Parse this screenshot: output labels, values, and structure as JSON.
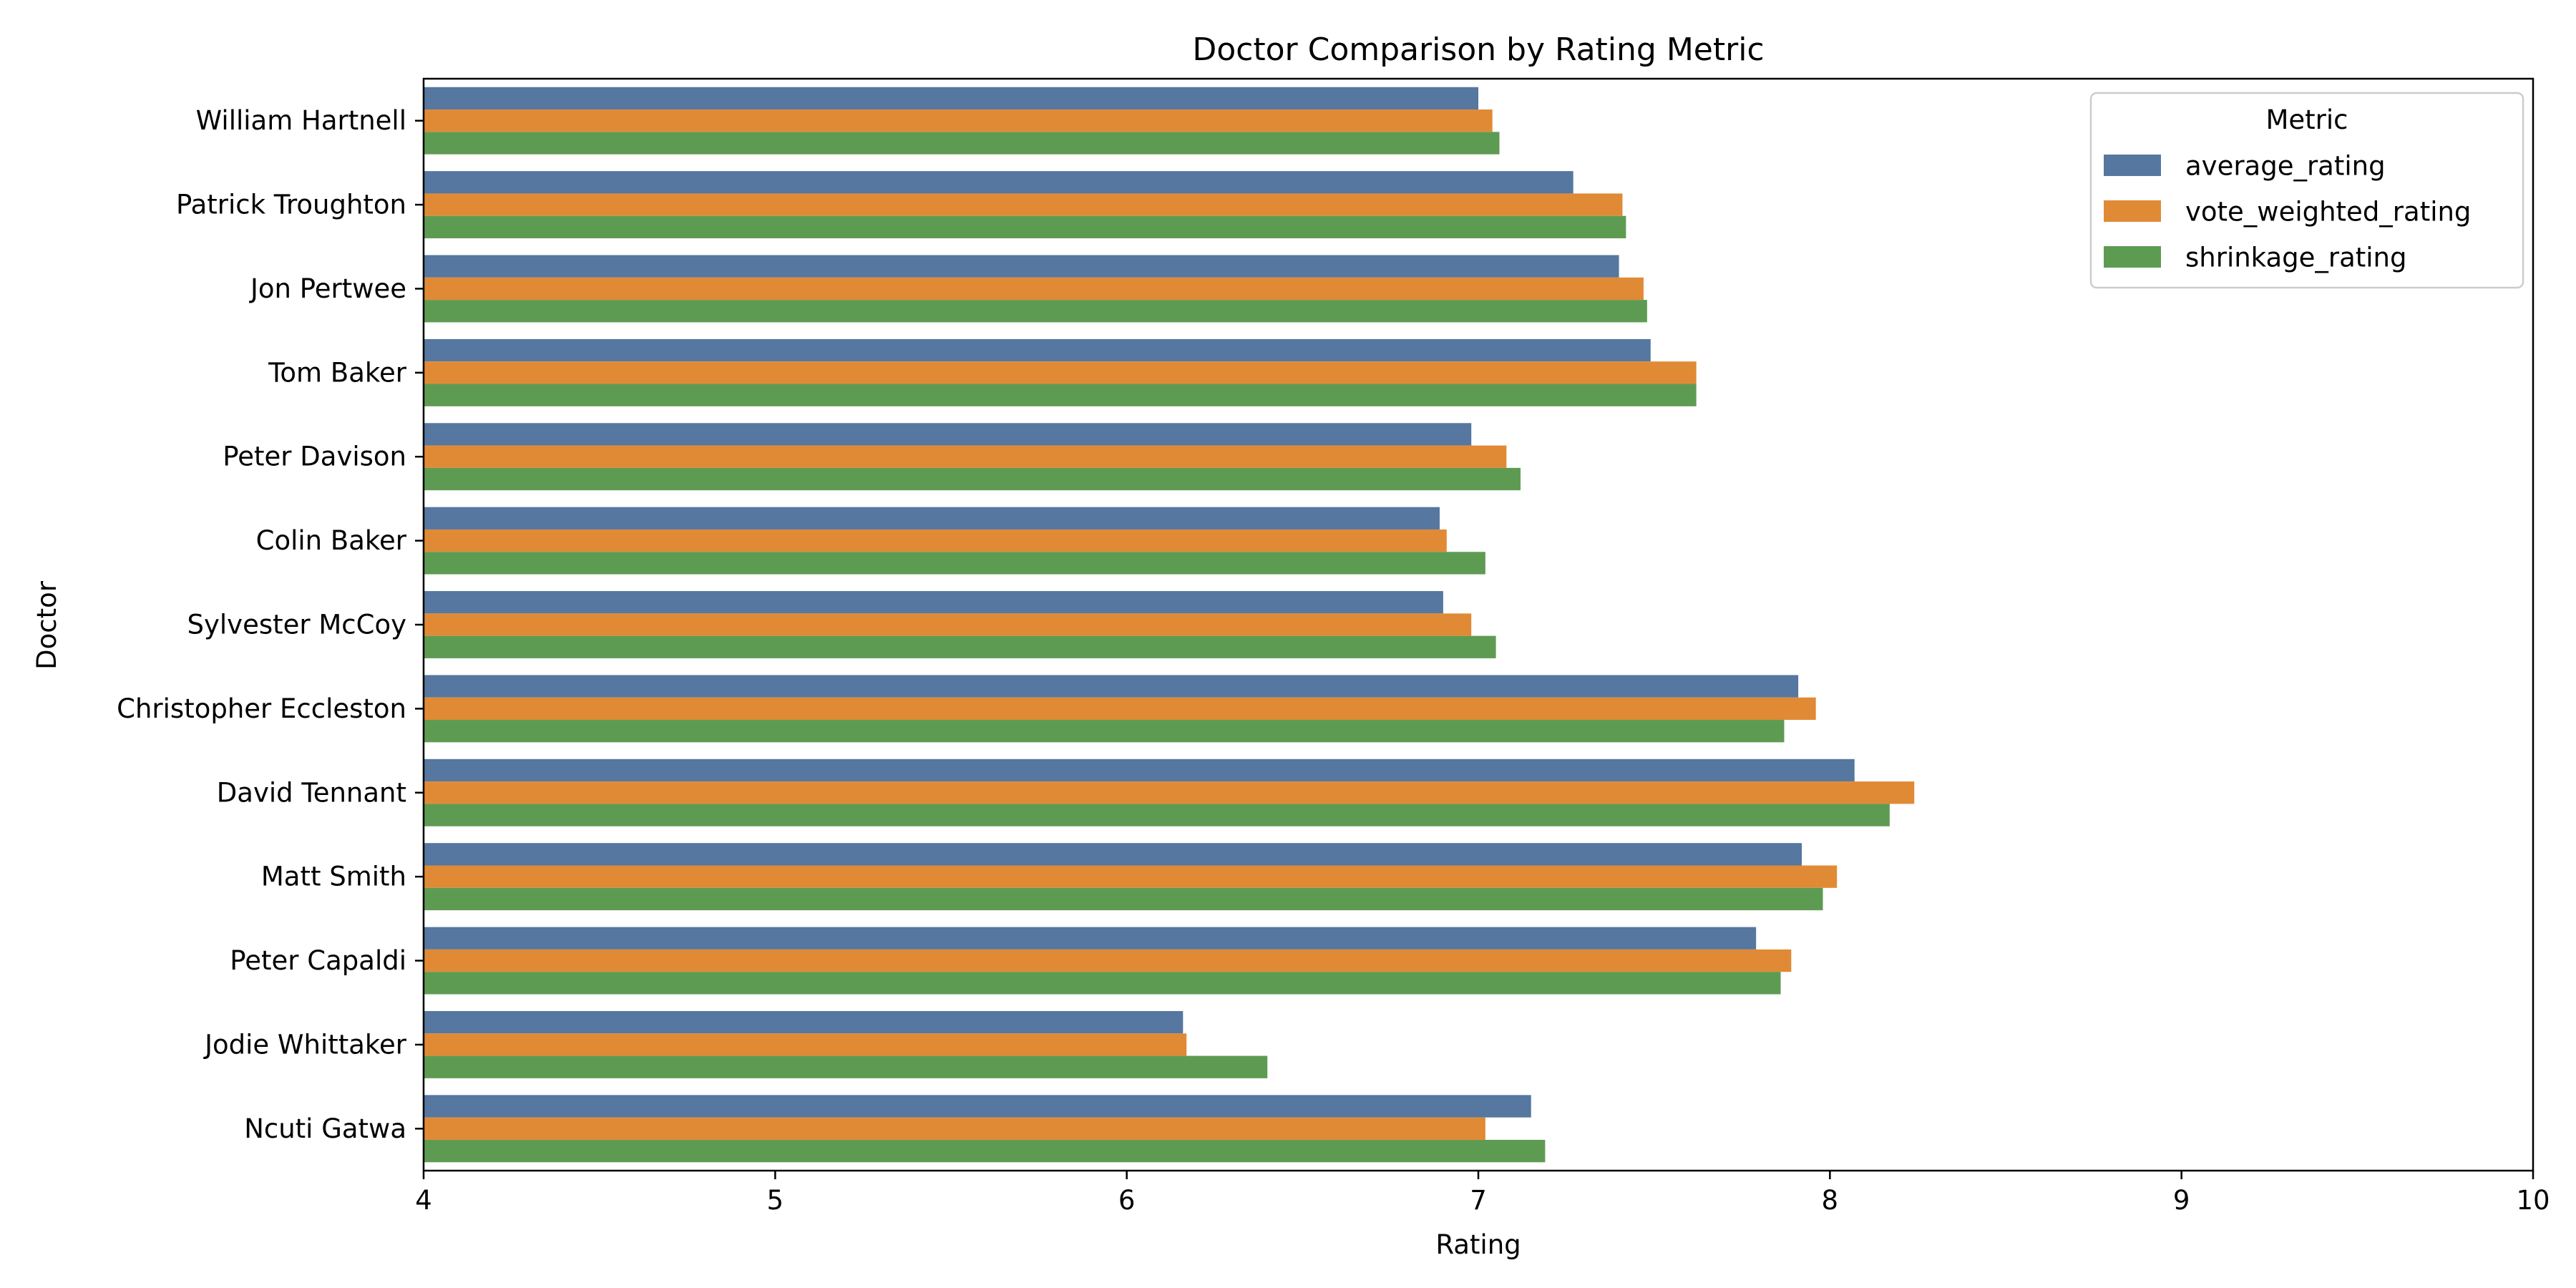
{
  "chart_data": {
    "type": "bar",
    "orientation": "horizontal",
    "title": "Doctor Comparison by Rating Metric",
    "xlabel": "Rating",
    "ylabel": "Doctor",
    "xlim": [
      4,
      10
    ],
    "xticks": [
      4,
      5,
      6,
      7,
      8,
      9,
      10
    ],
    "grid": false,
    "legend_title": "Metric",
    "legend_position": "top-right",
    "categories": [
      "William Hartnell",
      "Patrick Troughton",
      "Jon Pertwee",
      "Tom Baker",
      "Peter Davison",
      "Colin Baker",
      "Sylvester McCoy",
      "Christopher Eccleston",
      "David Tennant",
      "Matt Smith",
      "Peter Capaldi",
      "Jodie Whittaker",
      "Ncuti Gatwa"
    ],
    "series": [
      {
        "name": "average_rating",
        "color": "#5577a0",
        "values": [
          7.0,
          7.27,
          7.4,
          7.49,
          6.98,
          6.89,
          6.9,
          7.91,
          8.07,
          7.92,
          7.79,
          6.16,
          7.15
        ]
      },
      {
        "name": "vote_weighted_rating",
        "color": "#e08a36",
        "values": [
          7.04,
          7.41,
          7.47,
          7.62,
          7.08,
          6.91,
          6.98,
          7.96,
          8.24,
          8.02,
          7.89,
          6.17,
          7.02
        ]
      },
      {
        "name": "shrinkage_rating",
        "color": "#5e9b52",
        "values": [
          7.06,
          7.42,
          7.48,
          7.62,
          7.12,
          7.02,
          7.05,
          7.87,
          8.17,
          7.98,
          7.86,
          6.4,
          7.19
        ]
      }
    ]
  }
}
